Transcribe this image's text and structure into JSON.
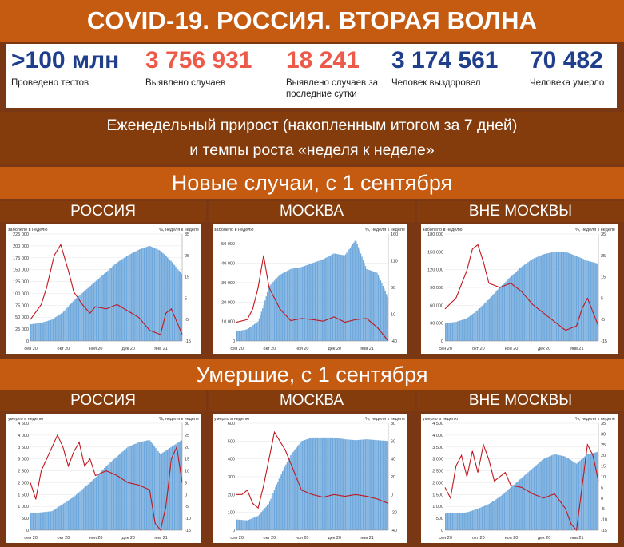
{
  "title": "COVID-19. РОССИЯ. ВТОРАЯ ВОЛНА",
  "stats": [
    {
      "value": ">100 млн",
      "label": "Проведено тестов",
      "color": "#1f3f8c"
    },
    {
      "value": "3 756 931",
      "label": "Выявлено случаев",
      "color": "#ee5a4a"
    },
    {
      "value": "18 241",
      "label": "Выявлено случаев за последние сутки",
      "color": "#ee5a4a"
    },
    {
      "value": "3 174 561",
      "label": "Человек выздоровел",
      "color": "#1f3f8c"
    },
    {
      "value": "70 482",
      "label": "Человека умерло",
      "color": "#1f3f8c"
    }
  ],
  "subtitle_line1": "Еженедельный прирост (накопленным итогом за 7 дней)",
  "subtitle_line2": "и темпы роста «неделя к неделе»",
  "section_cases": "Новые случаи, с 1 сентября",
  "section_deaths": "Умершие, с 1 сентября",
  "region_headers": [
    "РОССИЯ",
    "МОСКВА",
    "ВНЕ МОСКВЫ"
  ],
  "colors": {
    "bar": "#6fa8dc",
    "bar_edge": "#4a86c5",
    "line": "#c0171d"
  },
  "chart_data": [
    {
      "type": "bar",
      "region": "РОССИЯ",
      "metric": "cases",
      "ylabel": "заболело в неделю",
      "y2label": "%, неделя к неделе",
      "xticks": [
        "сен 20",
        "окт 20",
        "ноя 20",
        "дек 20",
        "янв 21"
      ],
      "ylim": [
        0,
        225000
      ],
      "yticks": [
        0,
        25000,
        50000,
        75000,
        100000,
        125000,
        150000,
        175000,
        200000,
        225000
      ],
      "y2lim": [
        -15,
        35
      ],
      "y2ticks": [
        -15,
        -5,
        5,
        15,
        25,
        35
      ],
      "series": [
        {
          "kind": "bar",
          "x": [
            0,
            10,
            20,
            30,
            40,
            50,
            60,
            70,
            80,
            90,
            100,
            110,
            120,
            130,
            140
          ],
          "values": [
            35000,
            38000,
            45000,
            60000,
            85000,
            105000,
            125000,
            145000,
            165000,
            180000,
            192000,
            200000,
            190000,
            168000,
            140000
          ]
        },
        {
          "kind": "line",
          "x": [
            0,
            10,
            15,
            22,
            28,
            35,
            40,
            48,
            55,
            60,
            70,
            80,
            90,
            100,
            110,
            120,
            125,
            130,
            140
          ],
          "values": [
            -5,
            2,
            10,
            25,
            30,
            18,
            8,
            2,
            -2,
            1,
            0,
            2,
            -1,
            -4,
            -10,
            -12,
            -2,
            0,
            -12
          ]
        }
      ]
    },
    {
      "type": "bar",
      "region": "МОСКВА",
      "metric": "cases",
      "ylabel": "заболело в неделю",
      "y2label": "%, неделя к неделе",
      "xticks": [
        "сен 20",
        "окт 20",
        "ноя 20",
        "дек 20",
        "янв 21"
      ],
      "ylim": [
        0,
        55000
      ],
      "yticks": [
        0,
        10000,
        20000,
        30000,
        40000,
        50000
      ],
      "y2lim": [
        -40,
        160
      ],
      "y2ticks": [
        -40,
        10,
        60,
        110,
        160
      ],
      "series": [
        {
          "kind": "bar",
          "x": [
            0,
            10,
            20,
            25,
            30,
            40,
            50,
            60,
            70,
            80,
            90,
            100,
            110,
            120,
            130,
            140
          ],
          "values": [
            5000,
            6000,
            10000,
            18000,
            28000,
            34000,
            37000,
            38000,
            40000,
            42000,
            45000,
            44000,
            52000,
            37000,
            35000,
            22000
          ]
        },
        {
          "kind": "line",
          "x": [
            0,
            10,
            15,
            20,
            25,
            30,
            40,
            50,
            60,
            70,
            80,
            90,
            100,
            110,
            120,
            130,
            140
          ],
          "values": [
            -5,
            0,
            20,
            60,
            120,
            60,
            20,
            -2,
            2,
            0,
            -3,
            5,
            -5,
            0,
            2,
            -15,
            -40
          ]
        }
      ]
    },
    {
      "type": "bar",
      "region": "ВНЕ МОСКВЫ",
      "metric": "cases",
      "ylabel": "заболело в неделю",
      "y2label": "%, неделя к неделе",
      "xticks": [
        "сен 20",
        "окт 20",
        "ноя 20",
        "дек 20",
        "янв 21"
      ],
      "ylim": [
        0,
        180000
      ],
      "yticks": [
        0,
        30000,
        60000,
        90000,
        120000,
        150000,
        180000
      ],
      "y2lim": [
        -15,
        35
      ],
      "y2ticks": [
        -15,
        -5,
        5,
        15,
        25,
        35
      ],
      "series": [
        {
          "kind": "bar",
          "x": [
            0,
            10,
            20,
            30,
            40,
            50,
            60,
            70,
            80,
            90,
            100,
            110,
            120,
            130,
            140
          ],
          "values": [
            30000,
            32000,
            38000,
            52000,
            70000,
            90000,
            108000,
            125000,
            138000,
            146000,
            150000,
            150000,
            143000,
            135000,
            130000
          ]
        },
        {
          "kind": "line",
          "x": [
            0,
            10,
            20,
            25,
            30,
            35,
            40,
            50,
            60,
            70,
            80,
            90,
            100,
            110,
            120,
            125,
            130,
            140
          ],
          "values": [
            0,
            5,
            18,
            28,
            30,
            22,
            12,
            10,
            12,
            8,
            2,
            -2,
            -6,
            -10,
            -8,
            0,
            5,
            -8
          ]
        }
      ]
    },
    {
      "type": "bar",
      "region": "РОССИЯ",
      "metric": "deaths",
      "ylabel": "умерло в неделю",
      "y2label": "%, неделя к неделе",
      "xticks": [
        "сен 20",
        "окт 20",
        "ноя 20",
        "дек 20",
        "янв 21"
      ],
      "ylim": [
        0,
        4500
      ],
      "yticks": [
        0,
        500,
        1000,
        1500,
        2000,
        2500,
        3000,
        3500,
        4000,
        4500
      ],
      "y2lim": [
        -15,
        30
      ],
      "y2ticks": [
        -15,
        -10,
        -5,
        0,
        5,
        10,
        15,
        20,
        25,
        30
      ],
      "series": [
        {
          "kind": "bar",
          "x": [
            0,
            10,
            20,
            30,
            40,
            50,
            60,
            70,
            80,
            90,
            100,
            110,
            120,
            130,
            140
          ],
          "values": [
            700,
            750,
            800,
            1100,
            1400,
            1800,
            2200,
            2700,
            3100,
            3500,
            3700,
            3800,
            3200,
            3500,
            3800
          ]
        },
        {
          "kind": "line",
          "x": [
            0,
            5,
            10,
            15,
            20,
            25,
            30,
            35,
            40,
            45,
            50,
            55,
            60,
            70,
            80,
            90,
            100,
            110,
            115,
            120,
            125,
            130,
            135,
            140
          ],
          "values": [
            5,
            -2,
            10,
            15,
            20,
            25,
            20,
            12,
            18,
            22,
            12,
            15,
            8,
            10,
            8,
            5,
            4,
            2,
            -12,
            -15,
            -5,
            15,
            20,
            5
          ]
        }
      ]
    },
    {
      "type": "bar",
      "region": "МОСКВА",
      "metric": "deaths",
      "ylabel": "умерло в неделю",
      "y2label": "%, неделя к неделе",
      "xticks": [
        "сен 20",
        "окт 20",
        "ноя 20",
        "дек 20",
        "янв 21"
      ],
      "ylim": [
        0,
        600
      ],
      "yticks": [
        0,
        100,
        200,
        300,
        400,
        500,
        600
      ],
      "y2lim": [
        -40,
        80
      ],
      "y2ticks": [
        -40,
        -20,
        0,
        20,
        40,
        60,
        80
      ],
      "series": [
        {
          "kind": "bar",
          "x": [
            0,
            10,
            20,
            30,
            40,
            50,
            60,
            70,
            80,
            90,
            100,
            110,
            120,
            130,
            140
          ],
          "values": [
            60,
            55,
            80,
            150,
            300,
            420,
            500,
            520,
            520,
            520,
            510,
            505,
            510,
            505,
            500
          ]
        },
        {
          "kind": "line",
          "x": [
            0,
            5,
            10,
            15,
            20,
            25,
            30,
            35,
            40,
            45,
            50,
            55,
            60,
            70,
            80,
            90,
            100,
            110,
            120,
            130,
            140
          ],
          "values": [
            0,
            0,
            5,
            -10,
            -15,
            10,
            40,
            70,
            60,
            50,
            35,
            20,
            5,
            0,
            -3,
            0,
            -2,
            0,
            -2,
            -5,
            -10
          ]
        }
      ]
    },
    {
      "type": "bar",
      "region": "ВНЕ МОСКВЫ",
      "metric": "deaths",
      "ylabel": "умерло в неделю",
      "y2label": "%, неделя к неделе",
      "xticks": [
        "сен 20",
        "окт 20",
        "ноя 20",
        "дек 20",
        "янв 21"
      ],
      "ylim": [
        0,
        4500
      ],
      "yticks": [
        0,
        500,
        1000,
        1500,
        2000,
        2500,
        3000,
        3500,
        4000,
        4500
      ],
      "y2lim": [
        -15,
        35
      ],
      "y2ticks": [
        -15,
        -10,
        -5,
        0,
        5,
        10,
        15,
        20,
        25,
        30,
        35
      ],
      "series": [
        {
          "kind": "bar",
          "x": [
            0,
            10,
            20,
            30,
            40,
            50,
            60,
            70,
            80,
            90,
            100,
            110,
            120,
            130,
            140
          ],
          "values": [
            700,
            720,
            750,
            900,
            1100,
            1400,
            1800,
            2200,
            2600,
            3000,
            3200,
            3100,
            2800,
            3200,
            3300
          ]
        },
        {
          "kind": "line",
          "x": [
            0,
            5,
            10,
            15,
            20,
            25,
            30,
            35,
            40,
            45,
            50,
            55,
            60,
            70,
            80,
            90,
            100,
            110,
            115,
            120,
            125,
            130,
            135,
            140
          ],
          "values": [
            5,
            0,
            15,
            20,
            10,
            22,
            12,
            25,
            18,
            8,
            10,
            12,
            6,
            5,
            2,
            0,
            2,
            -5,
            -12,
            -15,
            5,
            25,
            20,
            8
          ]
        }
      ]
    }
  ]
}
